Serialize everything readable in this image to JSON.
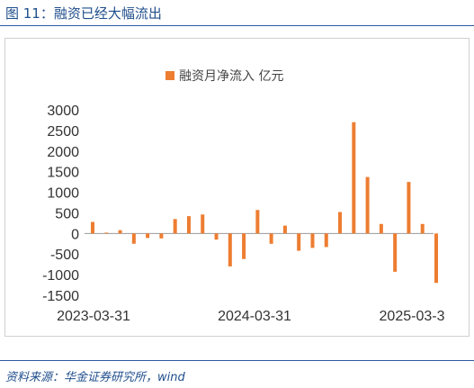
{
  "figure": {
    "title": "图 11：融资已经大幅流出",
    "source": "资料来源：华金证券研究所，wind"
  },
  "chart_data": {
    "type": "bar",
    "series": [
      {
        "name": "融资月净流入 亿元",
        "color": "#ed7d31",
        "values": [
          280,
          20,
          80,
          -250,
          -110,
          -120,
          350,
          420,
          460,
          -150,
          -800,
          -620,
          570,
          -250,
          190,
          -420,
          -350,
          -330,
          520,
          2700,
          1370,
          230,
          -930,
          1250,
          230,
          -1200
        ]
      }
    ],
    "x_labels": [
      "2023-03-31",
      "2024-03-31",
      "2025-03-3"
    ],
    "y_ticks": [
      3000,
      2500,
      2000,
      1500,
      1000,
      500,
      0,
      -500,
      -1000,
      -1500
    ],
    "ylim": [
      -1500,
      3000
    ],
    "legend_position": "top",
    "grid": false
  }
}
